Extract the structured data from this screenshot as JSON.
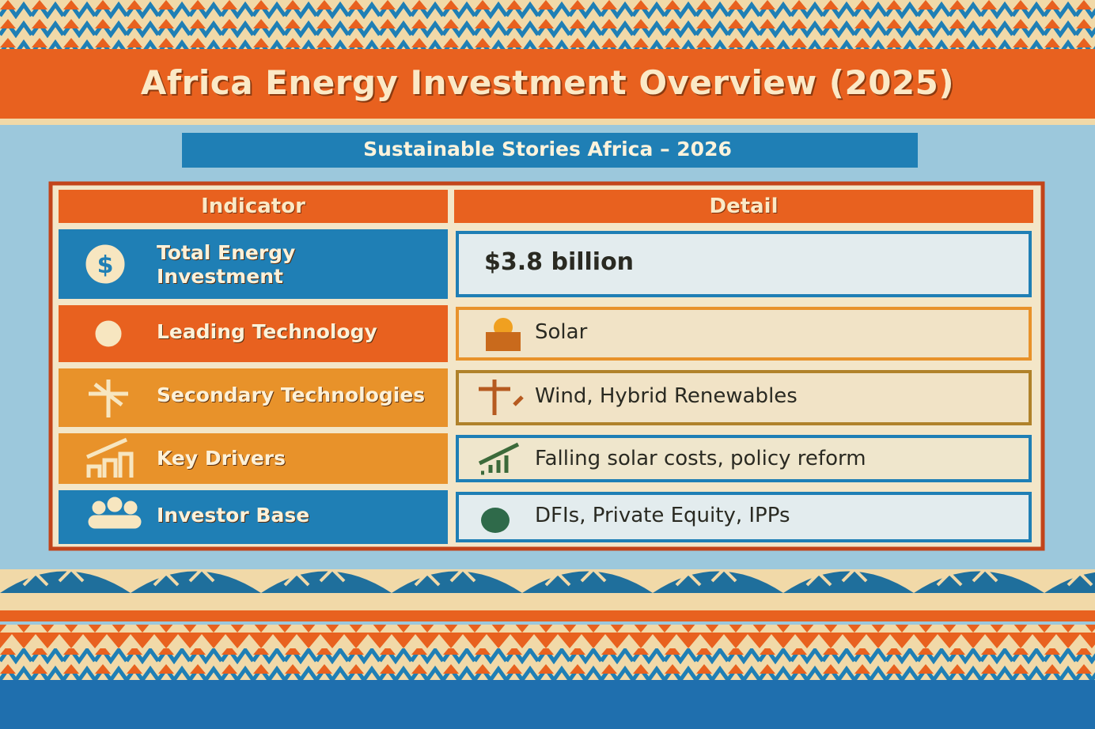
{
  "header": {
    "title": "Africa Energy Investment Overview (2025)",
    "subtitle": "Sustainable Stories Africa – 2026"
  },
  "table": {
    "columns": [
      "Indicator",
      "Detail"
    ],
    "rows": [
      [
        "Total Energy Investment",
        "$3.8 billion"
      ],
      [
        "Leading Technology",
        "Solar"
      ],
      [
        "Secondary Technologies",
        "Wind, Hybrid Renewables"
      ],
      [
        "Key Drivers",
        "Falling solar costs, policy reform"
      ],
      [
        "Investor Base",
        "DFIs, Private Equity, IPPs"
      ]
    ]
  }
}
